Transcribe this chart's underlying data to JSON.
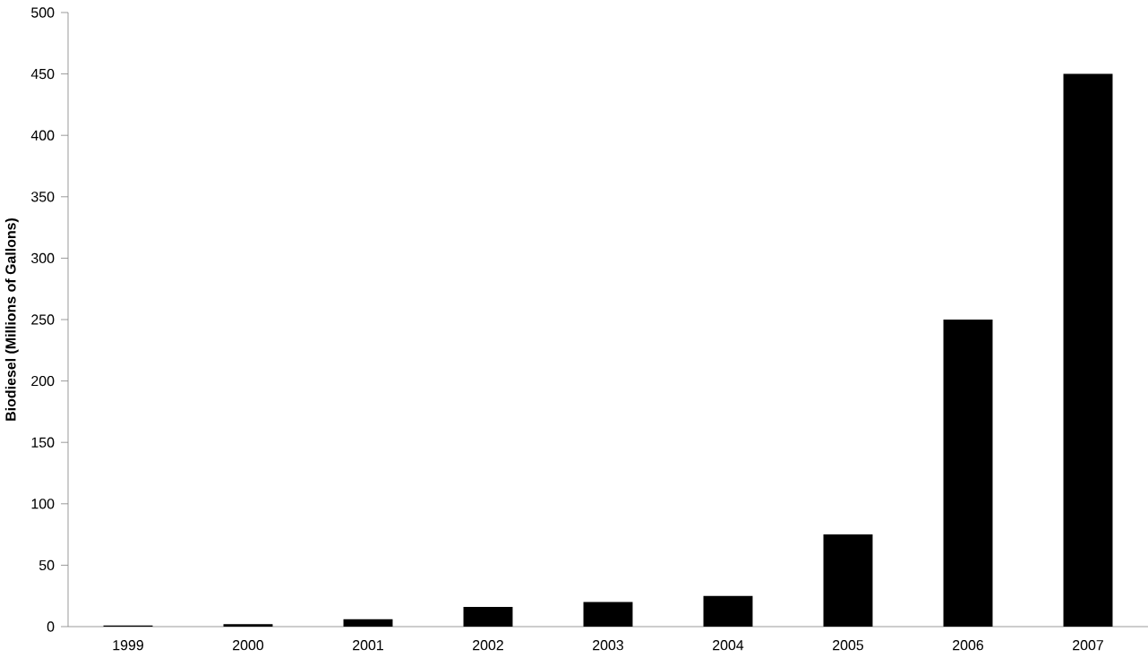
{
  "chart_data": {
    "type": "bar",
    "ylabel": "Biodiesel (Millions of Gallons)",
    "categories": [
      "1999",
      "2000",
      "2001",
      "2002",
      "2003",
      "2004",
      "2005",
      "2006",
      "2007"
    ],
    "values": [
      1,
      2,
      6,
      16,
      20,
      25,
      75,
      250,
      450
    ],
    "color": "#000000",
    "ylim": [
      0,
      500
    ],
    "yticks": [
      0,
      50,
      100,
      150,
      200,
      250,
      300,
      350,
      400,
      450,
      500
    ],
    "grid": false
  }
}
